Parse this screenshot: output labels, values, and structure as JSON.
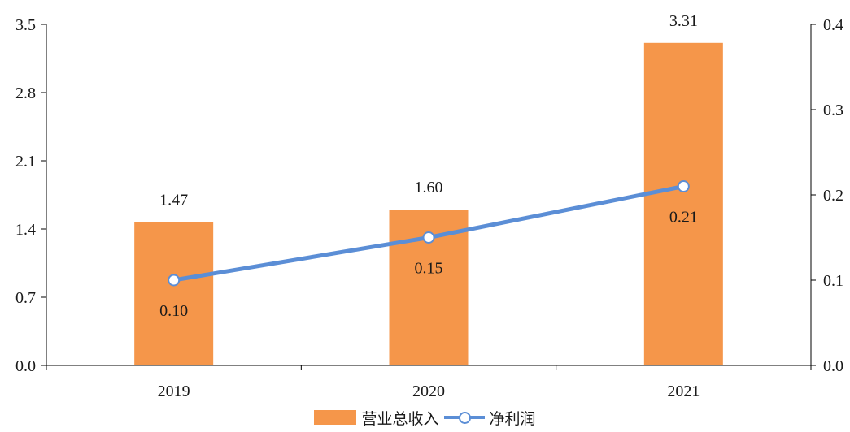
{
  "chart_data": {
    "type": "bar",
    "categories": [
      "2019",
      "2020",
      "2021"
    ],
    "series": [
      {
        "name": "营业总收入",
        "type": "bar",
        "axis": "left",
        "values": [
          1.47,
          1.6,
          3.31
        ],
        "labels": [
          "1.47",
          "1.60",
          "3.31"
        ],
        "color": "#F5964A"
      },
      {
        "name": "净利润",
        "type": "line",
        "axis": "right",
        "values": [
          0.1,
          0.15,
          0.21
        ],
        "labels": [
          "0.10",
          "0.15",
          "0.21"
        ],
        "color": "#5B8ED6"
      }
    ],
    "y_left": {
      "ylim": [
        0,
        3.5
      ],
      "ticks": [
        "0.0",
        "0.7",
        "1.4",
        "2.1",
        "2.8",
        "3.5"
      ]
    },
    "y_right": {
      "ylim": [
        0,
        0.4
      ],
      "ticks": [
        "0.0",
        "0.1",
        "0.2",
        "0.3",
        "0.4"
      ]
    },
    "title": "",
    "xlabel": "",
    "ylabel": "",
    "grid": false,
    "legend": "bottom"
  }
}
